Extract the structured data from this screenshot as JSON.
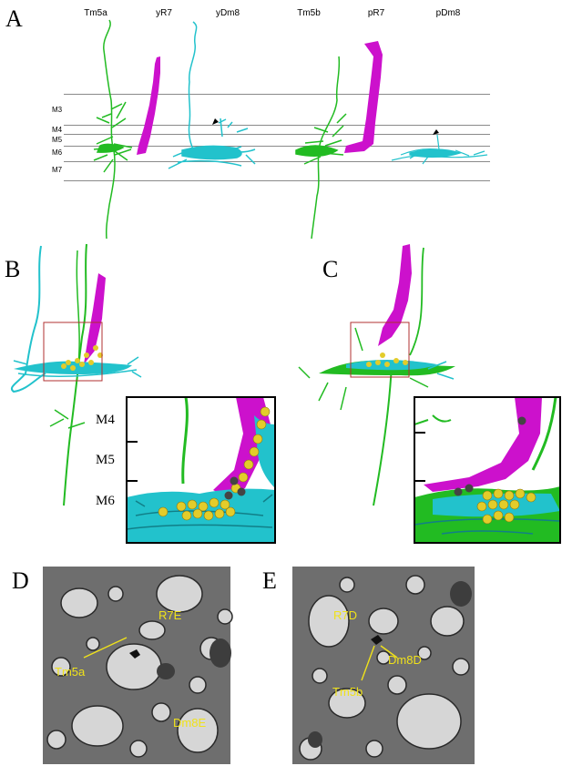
{
  "panels": {
    "A": {
      "letter": "A",
      "cell_labels": [
        "Tm5a",
        "yR7",
        "yDm8",
        "Tm5b",
        "pR7",
        "pDm8"
      ],
      "layers": [
        "M3",
        "M4",
        "M5",
        "M6",
        "M7"
      ]
    },
    "B": {
      "letter": "B",
      "inset_layers": [
        "M4",
        "M5",
        "M6"
      ]
    },
    "C": {
      "letter": "C"
    },
    "D": {
      "letter": "D",
      "labels": [
        "R7E",
        "Tm5a",
        "Dm8E"
      ]
    },
    "E": {
      "letter": "E",
      "labels": [
        "R7D",
        "Dm8D",
        "Tm5b"
      ]
    }
  },
  "colors": {
    "tm5": "#22bb22",
    "r7": "#cc11cc",
    "dm8": "#22c2cc",
    "synapse": "#e3cc2a",
    "box": "#b03030"
  }
}
